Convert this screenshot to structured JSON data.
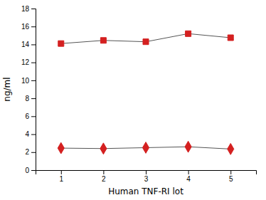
{
  "chart_data": {
    "type": "line",
    "x": [
      1,
      2,
      3,
      4,
      5
    ],
    "color": "#555555",
    "series": [
      {
        "values": [
          14.1,
          14.45,
          14.3,
          15.2,
          14.75
        ],
        "color": "#d42020",
        "marker": "square"
      },
      {
        "values": [
          2.45,
          2.4,
          2.5,
          2.6,
          2.35
        ],
        "color": "#d42020",
        "marker": "diamond"
      }
    ],
    "xlabel": "Human TNF-RI lot",
    "ylabel": "ng/ml",
    "xlim": [
      0.4,
      5.6
    ],
    "xticks": [
      1,
      2,
      3,
      4,
      5
    ],
    "ylim": [
      0,
      18
    ],
    "yticks": [
      0,
      2,
      4,
      6,
      8,
      10,
      12,
      14,
      16,
      18
    ],
    "grid": false
  }
}
